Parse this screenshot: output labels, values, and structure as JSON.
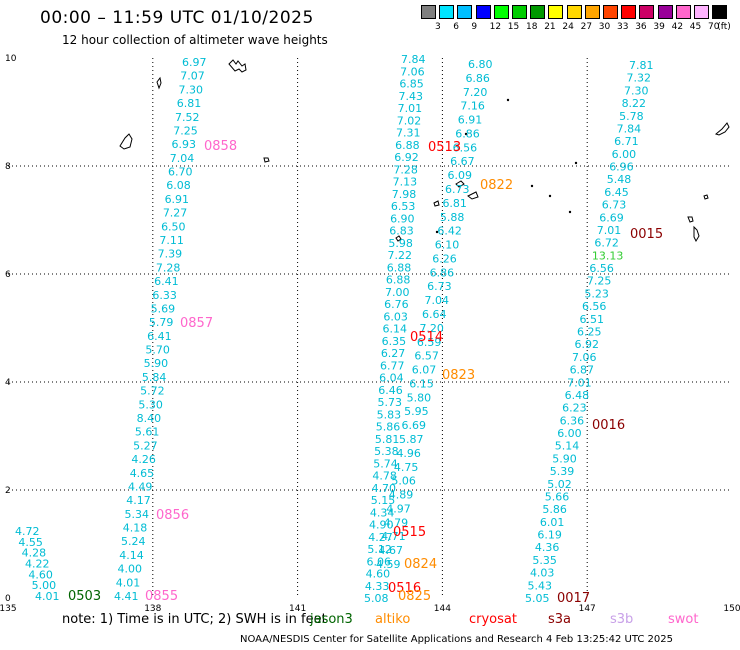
{
  "title": "00:00 – 11:59 UTC 01/10/2025",
  "subtitle": "12 hour collection of altimeter wave heights",
  "colorbar": {
    "unit_label": "(ft)",
    "ticks": [
      "3",
      "6",
      "9",
      "12",
      "15",
      "18",
      "21",
      "24",
      "27",
      "30",
      "33",
      "36",
      "39",
      "42",
      "45",
      "70"
    ],
    "colors": [
      "#7f7f7f",
      "#00e5ff",
      "#00bfff",
      "#0000ff",
      "#00ff00",
      "#00cc00",
      "#009900",
      "#ffff00",
      "#ffd700",
      "#ffa500",
      "#ff4500",
      "#ff0000",
      "#cc0066",
      "#990099",
      "#ff66cc",
      "#ffb3ff",
      "#000000"
    ]
  },
  "axes": {
    "x_ticks": [
      "135",
      "138",
      "141",
      "144",
      "147",
      "150"
    ],
    "y_ticks": [
      "0",
      "2",
      "4",
      "6",
      "8",
      "10"
    ]
  },
  "note": "note: 1) Time is in UTC; 2) SWH is in feet",
  "satellites": [
    {
      "name": "jason3",
      "color": "#006400"
    },
    {
      "name": "altiko",
      "color": "#ff8c00"
    },
    {
      "name": "cryosat",
      "color": "#ff0000"
    },
    {
      "name": "s3a",
      "color": "#8b0000"
    },
    {
      "name": "s3b",
      "color": "#c8a0e8"
    },
    {
      "name": "swot",
      "color": "#ff66cc"
    }
  ],
  "footer": "NOAA/NESDIS Center for Satellite Applications and Research    4 Feb 13:25:42 UTC 2025",
  "time_labels": [
    {
      "text": "0503",
      "color": "#006400"
    },
    {
      "text": "0855",
      "color": "#ff66cc"
    },
    {
      "text": "0856",
      "color": "#ff66cc"
    },
    {
      "text": "0857",
      "color": "#ff66cc"
    },
    {
      "text": "0858",
      "color": "#ff66cc"
    },
    {
      "text": "0513",
      "color": "#ff0000"
    },
    {
      "text": "0514",
      "color": "#ff0000"
    },
    {
      "text": "0515",
      "color": "#ff0000"
    },
    {
      "text": "0516",
      "color": "#ff0000"
    },
    {
      "text": "0822",
      "color": "#ff8c00"
    },
    {
      "text": "0823",
      "color": "#ff8c00"
    },
    {
      "text": "0824",
      "color": "#ff8c00"
    },
    {
      "text": "0825",
      "color": "#ff8c00"
    },
    {
      "text": "0015",
      "color": "#8b0000"
    },
    {
      "text": "0016",
      "color": "#8b0000"
    },
    {
      "text": "0017",
      "color": "#8b0000"
    }
  ],
  "tracks": {
    "track_a": [
      "4.72",
      "4.55",
      "4.28",
      "4.22",
      "4.60",
      "5.00",
      "4.01"
    ],
    "track_b": [
      "6.97",
      "7.07",
      "7.30",
      "6.81",
      "7.52",
      "7.25",
      "6.93",
      "7.04",
      "6.70",
      "6.08",
      "6.91",
      "7.27",
      "6.50",
      "7.11",
      "7.39",
      "7.28",
      "6.41",
      "6.33",
      "5.69",
      "5.79",
      "6.41",
      "5.70",
      "5.90",
      "5.84",
      "5.72",
      "5.30",
      "8.40",
      "5.61",
      "5.27",
      "4.26",
      "4.65",
      "4.49",
      "4.17",
      "5.34",
      "4.18",
      "5.24",
      "4.14",
      "4.00",
      "4.01",
      "4.41"
    ],
    "track_c": [
      "7.84",
      "7.06",
      "6.85",
      "7.43",
      "7.01",
      "7.02",
      "7.31",
      "6.88",
      "6.92",
      "7.28",
      "7.13",
      "7.98",
      "6.53",
      "6.90",
      "6.83",
      "5.98",
      "7.22",
      "6.88",
      "6.88",
      "7.00",
      "6.76",
      "6.03",
      "6.14",
      "6.35",
      "6.27",
      "6.77",
      "6.04",
      "6.46",
      "5.73",
      "5.83",
      "5.86",
      "5.81",
      "5.38",
      "5.74",
      "4.78",
      "4.70",
      "5.15",
      "4.34",
      "4.90",
      "4.27",
      "5.12",
      "6.06",
      "4.60",
      "4.33",
      "5.08"
    ],
    "track_d": [
      "6.80",
      "6.86",
      "7.20",
      "7.16",
      "6.91",
      "6.86",
      "6.56",
      "6.67",
      "6.09",
      "6.73",
      "6.81",
      "5.88",
      "6.42",
      "6.10",
      "6.26",
      "6.86",
      "6.73",
      "7.04",
      "6.64",
      "7.20",
      "6.59",
      "6.57",
      "6.07",
      "6.15",
      "5.80",
      "5.95",
      "6.69",
      "5.87",
      "4.96",
      "4.75",
      "5.06",
      "4.89",
      "4.97",
      "4.79",
      "4.71",
      "4.67",
      "4.59"
    ],
    "track_e": [
      "7.81",
      "7.32",
      "7.30",
      "8.22",
      "5.78",
      "7.84",
      "6.71",
      "6.00",
      "6.96",
      "5.48",
      "6.45",
      "6.73",
      "6.69",
      "7.01",
      "6.72",
      "13.13",
      "6.56",
      "7.25",
      "5.23",
      "6.56",
      "6.51",
      "6.25",
      "6.92",
      "7.06",
      "6.87",
      "7.01",
      "6.48",
      "6.23",
      "6.36",
      "6.00",
      "5.14",
      "5.90",
      "5.39",
      "5.02",
      "5.66",
      "5.86",
      "6.01",
      "6.19",
      "4.36",
      "5.35",
      "4.03",
      "5.43",
      "5.05"
    ]
  }
}
